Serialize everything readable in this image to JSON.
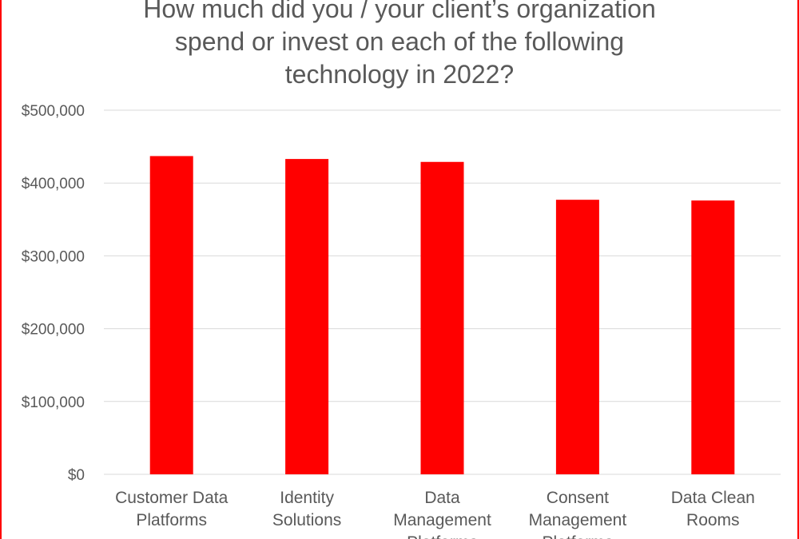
{
  "chart_data": {
    "type": "bar",
    "title_lines": [
      "How much did you / your client’s organization",
      "spend or invest on each of the following",
      "technology in 2022?"
    ],
    "categories": [
      [
        "Customer Data",
        "Platforms"
      ],
      [
        "Identity",
        "Solutions"
      ],
      [
        "Data",
        "Management",
        "Platforms"
      ],
      [
        "Consent",
        "Management",
        "Platforms"
      ],
      [
        "Data Clean",
        "Rooms"
      ]
    ],
    "values": [
      437000,
      433000,
      429000,
      377000,
      376000
    ],
    "ylim": [
      0,
      500000
    ],
    "yticks": [
      0,
      100000,
      200000,
      300000,
      400000,
      500000
    ],
    "ytick_labels": [
      "$0",
      "$100,000",
      "$200,000",
      "$300,000",
      "$400,000",
      "$500,000"
    ],
    "grid": true,
    "bar_color": "#ff0000",
    "xlabel": "",
    "ylabel": ""
  }
}
